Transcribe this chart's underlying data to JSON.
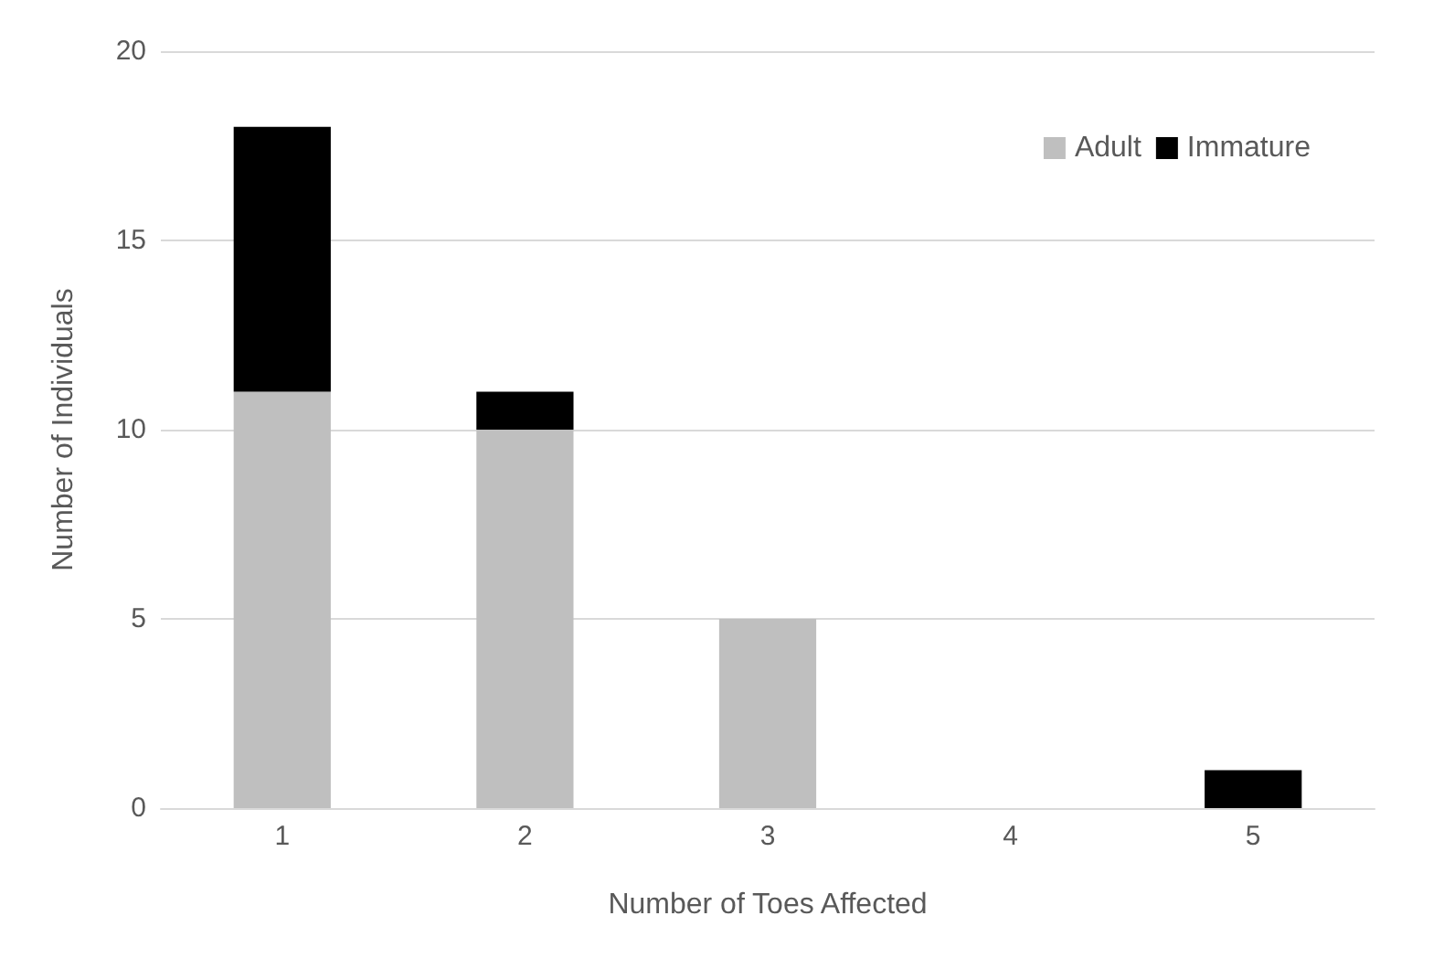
{
  "chart_data": {
    "type": "bar",
    "stacked": true,
    "xlabel": "Number of Toes Affected",
    "ylabel": "Number of Individuals",
    "categories": [
      "1",
      "2",
      "3",
      "4",
      "5"
    ],
    "series": [
      {
        "name": "Adult",
        "color": "#bfbfbf",
        "values": [
          11,
          10,
          5,
          0,
          0
        ]
      },
      {
        "name": "Immature",
        "color": "#000000",
        "values": [
          7,
          1,
          0,
          0,
          1
        ]
      }
    ],
    "ylim": [
      0,
      20
    ],
    "yticks": [
      0,
      5,
      10,
      15,
      20
    ],
    "grid": "y",
    "legend": "top right"
  }
}
